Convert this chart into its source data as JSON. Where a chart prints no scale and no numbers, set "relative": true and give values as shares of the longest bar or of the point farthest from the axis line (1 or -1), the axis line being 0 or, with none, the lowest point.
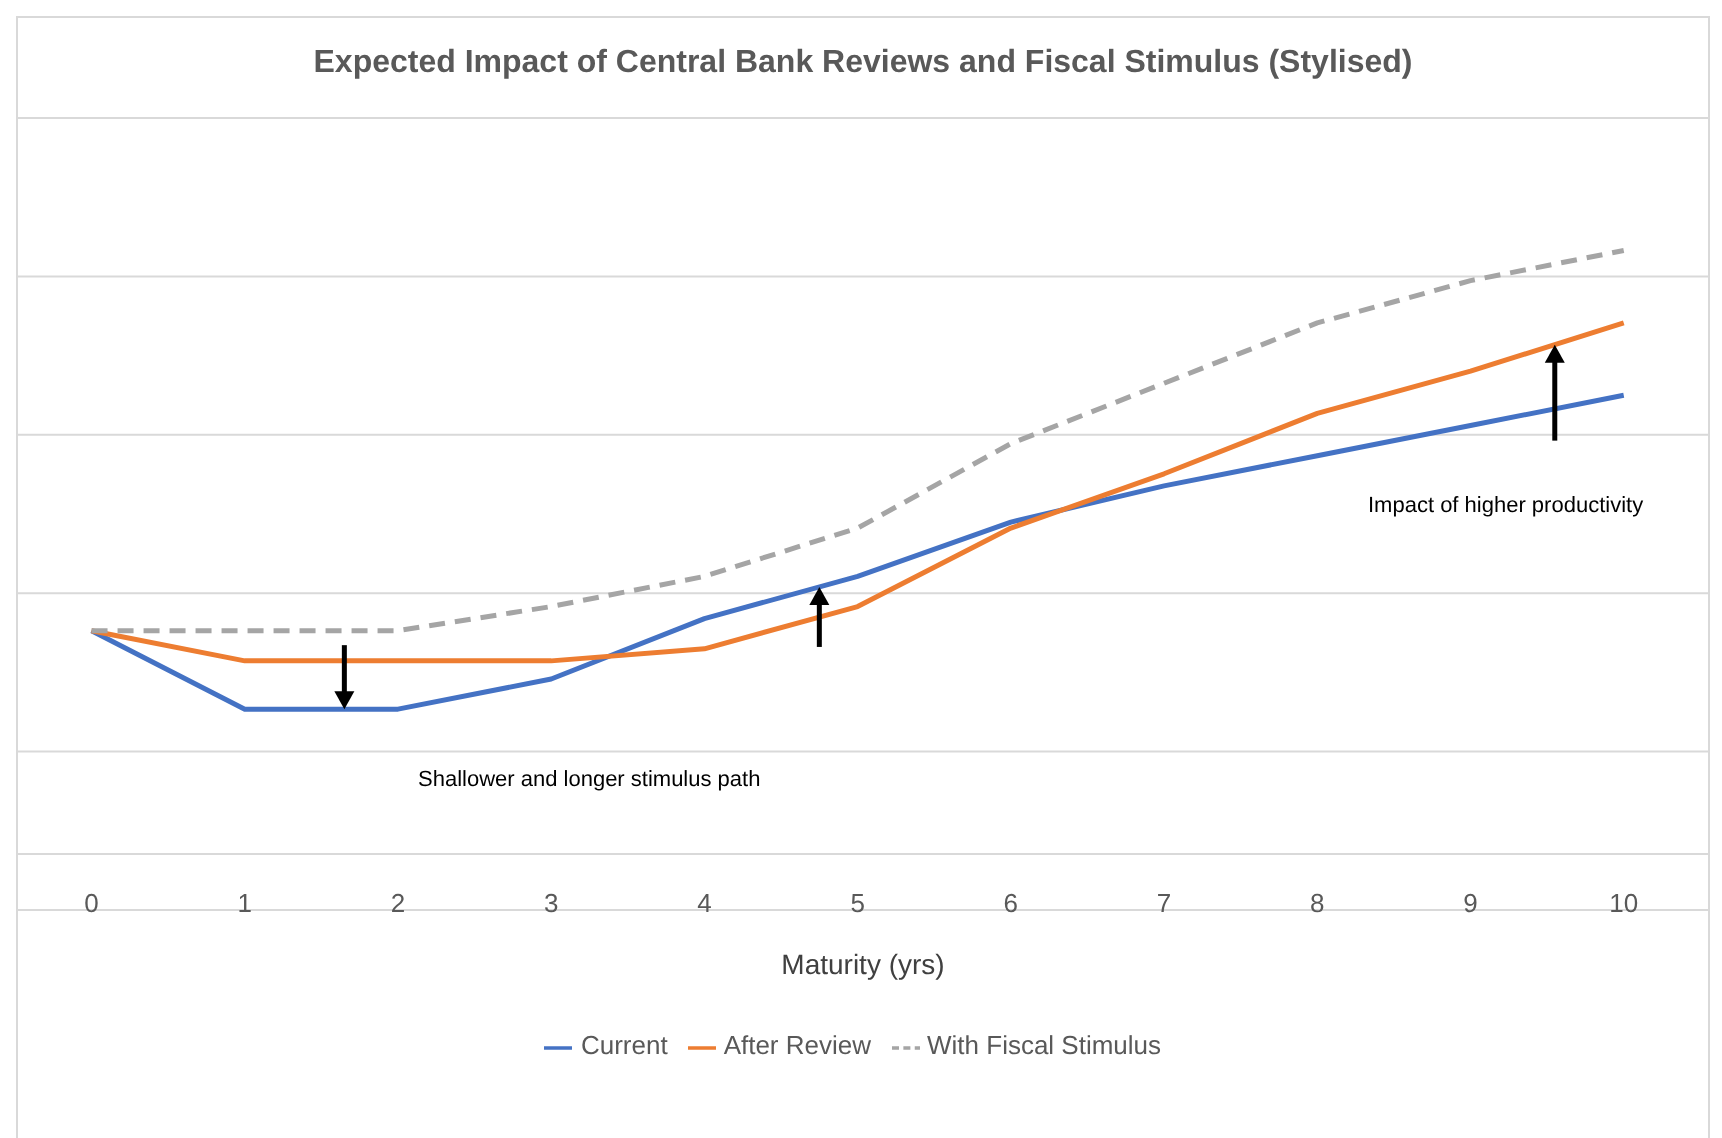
{
  "chart_data": {
    "type": "line",
    "title": "Expected Impact of Central Bank Reviews and Fiscal Stimulus (Stylised)",
    "xlabel": "Maturity (yrs)",
    "x": [
      0,
      1,
      2,
      3,
      4,
      5,
      6,
      7,
      8,
      9,
      10
    ],
    "xlim": [
      -0.48,
      10.55
    ],
    "xticks": [
      0,
      1,
      2,
      3,
      4,
      5,
      6,
      7,
      8,
      9,
      10
    ],
    "relative": true,
    "grid": "y",
    "legend": "bottom",
    "marker": "none",
    "series": [
      {
        "name": "Current",
        "color": "#4472c4",
        "line_style": "solid",
        "values": [
          0.37,
          0.24,
          0.24,
          0.29,
          0.39,
          0.46,
          0.55,
          0.61,
          0.66,
          0.71,
          0.76
        ]
      },
      {
        "name": "After Review",
        "color": "#ed7d31",
        "line_style": "solid",
        "values": [
          0.37,
          0.32,
          0.32,
          0.32,
          0.34,
          0.41,
          0.54,
          0.63,
          0.73,
          0.8,
          0.88
        ]
      },
      {
        "name": "With Fiscal Stimulus",
        "color": "#a5a5a5",
        "line_style": "dashed",
        "values": [
          0.37,
          0.37,
          0.37,
          0.41,
          0.46,
          0.54,
          0.68,
          0.78,
          0.88,
          0.95,
          1
        ]
      }
    ],
    "annotations": [
      "Shallower and longer stimulus path",
      "Impact of higher productivity"
    ]
  }
}
